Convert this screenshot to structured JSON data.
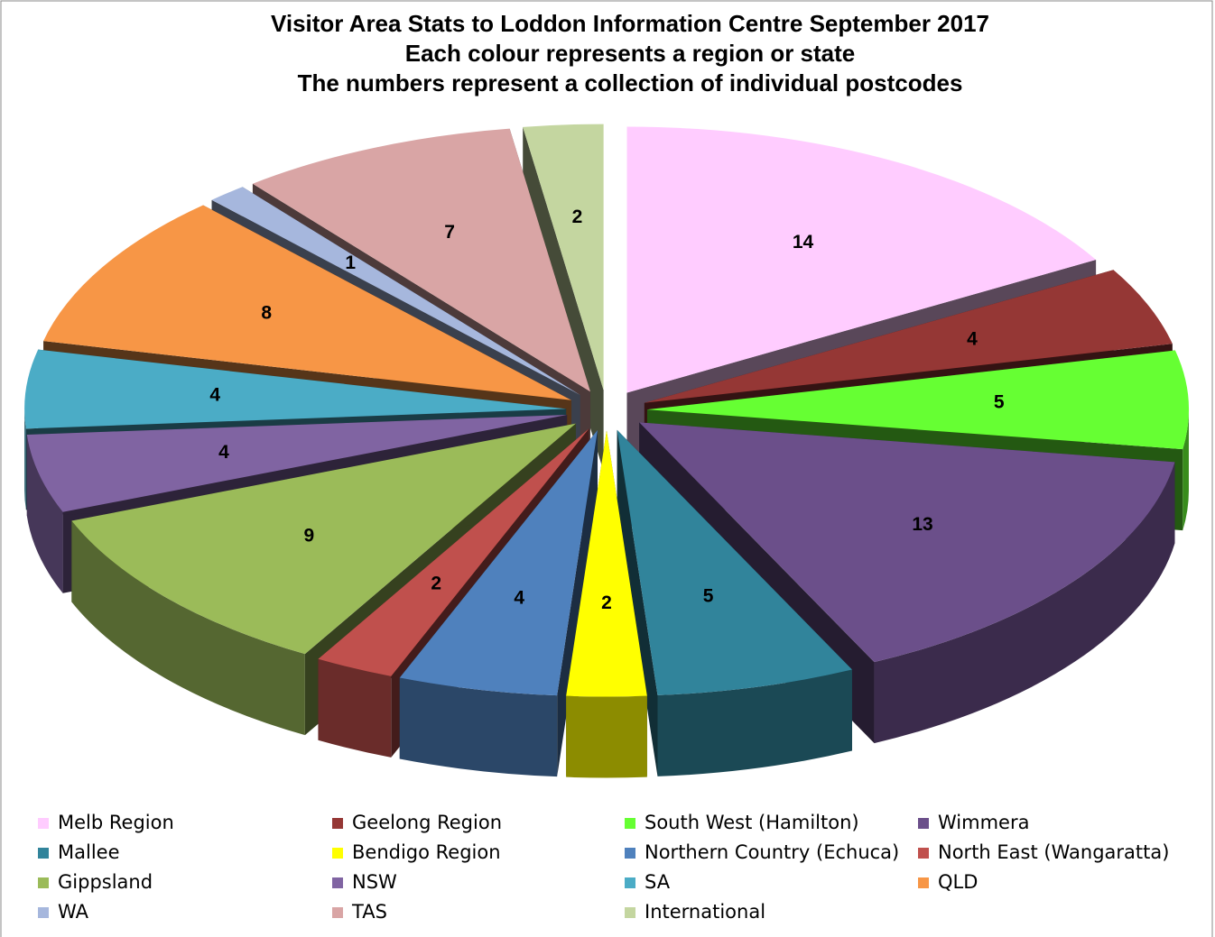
{
  "chart_data": {
    "type": "pie3d",
    "title": "Visitor Area Stats to Loddon Information Centre September 2017",
    "subtitle": [
      "Each colour represents a region or state",
      "The numbers represent a collection of individual postcodes"
    ],
    "series": [
      {
        "name": "Melb Region",
        "color": "#ffccff",
        "value": 14
      },
      {
        "name": "Geelong Region",
        "color": "#953735",
        "value": 4
      },
      {
        "name": "South West (Hamilton)",
        "color": "#66ff33",
        "value": 5
      },
      {
        "name": "Wimmera",
        "color": "#6b4f8a",
        "value": 13
      },
      {
        "name": "Mallee",
        "color": "#31849b",
        "value": 5
      },
      {
        "name": "Bendigo Region",
        "color": "#ffff00",
        "value": 2
      },
      {
        "name": "Northern Country (Echuca)",
        "color": "#4f81bd",
        "value": 4
      },
      {
        "name": "North East (Wangaratta)",
        "color": "#c0504d",
        "value": 2
      },
      {
        "name": "Gippsland",
        "color": "#9bbb59",
        "value": 9
      },
      {
        "name": "NSW",
        "color": "#8064a2",
        "value": 4
      },
      {
        "name": "SA",
        "color": "#4bacc6",
        "value": 4
      },
      {
        "name": "QLD",
        "color": "#f79646",
        "value": 8
      },
      {
        "name": "WA",
        "color": "#a6b7dd",
        "value": 1
      },
      {
        "name": "TAS",
        "color": "#d9a5a5",
        "value": 7
      },
      {
        "name": "International",
        "color": "#c4d6a0",
        "value": 2
      }
    ]
  }
}
